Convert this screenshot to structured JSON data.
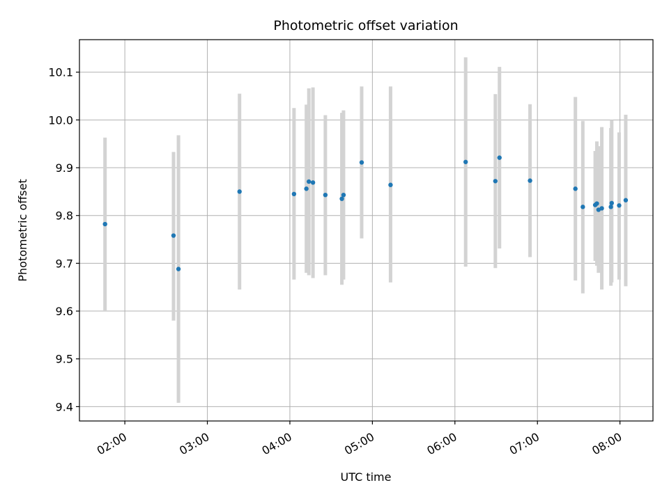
{
  "chart_data": {
    "type": "scatter",
    "title": "Photometric offset variation",
    "xlabel": "UTC time",
    "ylabel": "Photometric offset",
    "grid": true,
    "marker_color": "#1f77b4",
    "errorbar_color": "#d3d3d3",
    "xlim_hours": [
      1.45,
      8.4
    ],
    "ylim": [
      9.37,
      10.168
    ],
    "x_ticks": [
      {
        "label": "02:00",
        "value": 2
      },
      {
        "label": "03:00",
        "value": 3
      },
      {
        "label": "04:00",
        "value": 4
      },
      {
        "label": "05:00",
        "value": 5
      },
      {
        "label": "06:00",
        "value": 6
      },
      {
        "label": "07:00",
        "value": 7
      },
      {
        "label": "08:00",
        "value": 8
      }
    ],
    "y_ticks": [
      "9.4",
      "9.5",
      "9.6",
      "9.7",
      "9.8",
      "9.9",
      "10.0",
      "10.1"
    ],
    "points": [
      {
        "t": 1.76,
        "y": 9.782,
        "lo": 9.6,
        "hi": 9.963
      },
      {
        "t": 2.59,
        "y": 9.758,
        "lo": 9.58,
        "hi": 9.933
      },
      {
        "t": 2.65,
        "y": 9.688,
        "lo": 9.408,
        "hi": 9.968
      },
      {
        "t": 3.39,
        "y": 9.85,
        "lo": 9.645,
        "hi": 10.055
      },
      {
        "t": 4.05,
        "y": 9.845,
        "lo": 9.666,
        "hi": 10.025
      },
      {
        "t": 4.2,
        "y": 9.856,
        "lo": 9.68,
        "hi": 10.032
      },
      {
        "t": 4.23,
        "y": 9.871,
        "lo": 9.675,
        "hi": 10.066
      },
      {
        "t": 4.28,
        "y": 9.869,
        "lo": 9.669,
        "hi": 10.068
      },
      {
        "t": 4.43,
        "y": 9.843,
        "lo": 9.675,
        "hi": 10.01
      },
      {
        "t": 4.63,
        "y": 9.835,
        "lo": 9.655,
        "hi": 10.015
      },
      {
        "t": 4.65,
        "y": 9.843,
        "lo": 9.666,
        "hi": 10.02
      },
      {
        "t": 4.87,
        "y": 9.911,
        "lo": 9.752,
        "hi": 10.07
      },
      {
        "t": 5.22,
        "y": 9.864,
        "lo": 9.66,
        "hi": 10.07
      },
      {
        "t": 6.13,
        "y": 9.912,
        "lo": 9.693,
        "hi": 10.131
      },
      {
        "t": 6.49,
        "y": 9.872,
        "lo": 9.69,
        "hi": 10.054
      },
      {
        "t": 6.54,
        "y": 9.921,
        "lo": 9.731,
        "hi": 10.111
      },
      {
        "t": 6.91,
        "y": 9.873,
        "lo": 9.713,
        "hi": 10.033
      },
      {
        "t": 7.46,
        "y": 9.856,
        "lo": 9.664,
        "hi": 10.048
      },
      {
        "t": 7.55,
        "y": 9.818,
        "lo": 9.637,
        "hi": 9.998
      },
      {
        "t": 7.7,
        "y": 9.822,
        "lo": 9.705,
        "hi": 9.935
      },
      {
        "t": 7.72,
        "y": 9.825,
        "lo": 9.695,
        "hi": 9.955
      },
      {
        "t": 7.74,
        "y": 9.812,
        "lo": 9.68,
        "hi": 9.945
      },
      {
        "t": 7.78,
        "y": 9.815,
        "lo": 9.645,
        "hi": 9.985
      },
      {
        "t": 7.89,
        "y": 9.818,
        "lo": 9.653,
        "hi": 9.983
      },
      {
        "t": 7.9,
        "y": 9.826,
        "lo": 9.66,
        "hi": 10.0
      },
      {
        "t": 7.99,
        "y": 9.821,
        "lo": 9.666,
        "hi": 9.974
      },
      {
        "t": 8.07,
        "y": 9.832,
        "lo": 9.652,
        "hi": 10.011
      }
    ]
  }
}
